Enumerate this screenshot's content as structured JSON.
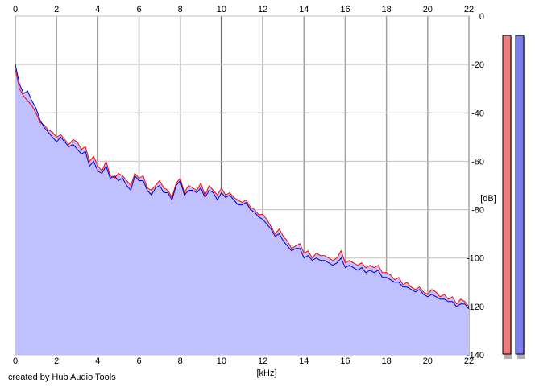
{
  "window": {
    "credit": "created by Hub Audio Tools"
  },
  "meters": [
    {
      "name": "left-channel-meter",
      "fill_color": "#ef7c7c",
      "level_fraction": 1.0
    },
    {
      "name": "right-channel-meter",
      "fill_color": "#7c7cef",
      "level_fraction": 1.0
    }
  ],
  "chart_data": {
    "type": "line",
    "xlabel": "[kHz]",
    "ylabel": "[dB]",
    "xlim": [
      0,
      22
    ],
    "ylim": [
      -140,
      0
    ],
    "x_ticks": [
      "0",
      "2",
      "4",
      "6",
      "8",
      "10",
      "12",
      "14",
      "16",
      "18",
      "20",
      "22"
    ],
    "y_ticks": [
      "0",
      "-20",
      "-40",
      "-60",
      "-80",
      "-100",
      "-120",
      "-140"
    ],
    "grid": true,
    "area_fill_color": "#c0c0ff",
    "series": [
      {
        "color": "#ff0000",
        "x": [
          0,
          0.2,
          0.4,
          0.6,
          0.8,
          1,
          1.2,
          1.4,
          1.6,
          1.8,
          2,
          2.2,
          2.4,
          2.6,
          2.8,
          3,
          3.2,
          3.4,
          3.6,
          3.8,
          4,
          4.2,
          4.4,
          4.6,
          4.8,
          5,
          5.2,
          5.4,
          5.6,
          5.8,
          6,
          6.2,
          6.4,
          6.6,
          6.8,
          7,
          7.2,
          7.4,
          7.6,
          7.8,
          8,
          8.2,
          8.4,
          8.6,
          8.8,
          9,
          9.2,
          9.4,
          9.6,
          9.8,
          10,
          10.2,
          10.4,
          10.6,
          10.8,
          11,
          11.2,
          11.4,
          11.6,
          11.8,
          12,
          12.2,
          12.4,
          12.6,
          12.8,
          13,
          13.2,
          13.4,
          13.6,
          13.8,
          14,
          14.2,
          14.4,
          14.6,
          14.8,
          15,
          15.2,
          15.4,
          15.6,
          15.8,
          16,
          16.2,
          16.4,
          16.6,
          16.8,
          17,
          17.2,
          17.4,
          17.6,
          17.8,
          18,
          18.2,
          18.4,
          18.6,
          18.8,
          19,
          19.2,
          19.4,
          19.6,
          19.8,
          20,
          20.2,
          20.4,
          20.6,
          20.8,
          21,
          21.2,
          21.4,
          21.6,
          21.8,
          22
        ],
        "y": [
          -22,
          -30,
          -33,
          -35,
          -37,
          -40,
          -44,
          -45,
          -47,
          -48,
          -50,
          -49,
          -51,
          -53,
          -51,
          -52,
          -55,
          -54,
          -60,
          -58,
          -62,
          -64,
          -60,
          -66,
          -67,
          -65,
          -66,
          -68,
          -70,
          -65,
          -67,
          -66,
          -71,
          -72,
          -70,
          -68,
          -71,
          -72,
          -75,
          -69,
          -67,
          -73,
          -70,
          -71,
          -72,
          -69,
          -74,
          -70,
          -72,
          -74,
          -71,
          -74,
          -73,
          -75,
          -76,
          -77,
          -76,
          -79,
          -80,
          -82,
          -82,
          -84,
          -87,
          -90,
          -88,
          -91,
          -93,
          -96,
          -95,
          -94,
          -98,
          -97,
          -100,
          -98,
          -99,
          -99,
          -100,
          -101,
          -100,
          -97,
          -102,
          -101,
          -102,
          -103,
          -102,
          -104,
          -103,
          -104,
          -103,
          -106,
          -106,
          -107,
          -109,
          -108,
          -111,
          -110,
          -112,
          -113,
          -112,
          -114,
          -115,
          -113,
          -114,
          -116,
          -115,
          -117,
          -116,
          -119,
          -117,
          -118,
          -120
        ]
      },
      {
        "color": "#0000c0",
        "x": [
          0,
          0.2,
          0.4,
          0.6,
          0.8,
          1,
          1.2,
          1.4,
          1.6,
          1.8,
          2,
          2.2,
          2.4,
          2.6,
          2.8,
          3,
          3.2,
          3.4,
          3.6,
          3.8,
          4,
          4.2,
          4.4,
          4.6,
          4.8,
          5,
          5.2,
          5.4,
          5.6,
          5.8,
          6,
          6.2,
          6.4,
          6.6,
          6.8,
          7,
          7.2,
          7.4,
          7.6,
          7.8,
          8,
          8.2,
          8.4,
          8.6,
          8.8,
          9,
          9.2,
          9.4,
          9.6,
          9.8,
          10,
          10.2,
          10.4,
          10.6,
          10.8,
          11,
          11.2,
          11.4,
          11.6,
          11.8,
          12,
          12.2,
          12.4,
          12.6,
          12.8,
          13,
          13.2,
          13.4,
          13.6,
          13.8,
          14,
          14.2,
          14.4,
          14.6,
          14.8,
          15,
          15.2,
          15.4,
          15.6,
          15.8,
          16,
          16.2,
          16.4,
          16.6,
          16.8,
          17,
          17.2,
          17.4,
          17.6,
          17.8,
          18,
          18.2,
          18.4,
          18.6,
          18.8,
          19,
          19.2,
          19.4,
          19.6,
          19.8,
          20,
          20.2,
          20.4,
          20.6,
          20.8,
          21,
          21.2,
          21.4,
          21.6,
          21.8,
          22
        ],
        "y": [
          -20,
          -28,
          -32,
          -31,
          -35,
          -38,
          -43,
          -46,
          -48,
          -50,
          -52,
          -50,
          -52,
          -54,
          -53,
          -55,
          -57,
          -56,
          -62,
          -60,
          -64,
          -65,
          -62,
          -67,
          -66,
          -68,
          -67,
          -70,
          -72,
          -66,
          -68,
          -68,
          -72,
          -74,
          -71,
          -70,
          -73,
          -73,
          -76,
          -70,
          -68,
          -74,
          -72,
          -72,
          -73,
          -71,
          -75,
          -72,
          -73,
          -76,
          -73,
          -75,
          -74,
          -76,
          -78,
          -78,
          -77,
          -80,
          -81,
          -83,
          -84,
          -86,
          -88,
          -91,
          -90,
          -93,
          -95,
          -97,
          -96,
          -96,
          -100,
          -99,
          -101,
          -100,
          -101,
          -101,
          -102,
          -103,
          -102,
          -100,
          -104,
          -103,
          -104,
          -105,
          -104,
          -106,
          -105,
          -106,
          -105,
          -108,
          -108,
          -109,
          -110,
          -110,
          -112,
          -112,
          -113,
          -114,
          -113,
          -115,
          -116,
          -115,
          -116,
          -117,
          -117,
          -118,
          -118,
          -120,
          -119,
          -119,
          -121
        ]
      }
    ]
  }
}
